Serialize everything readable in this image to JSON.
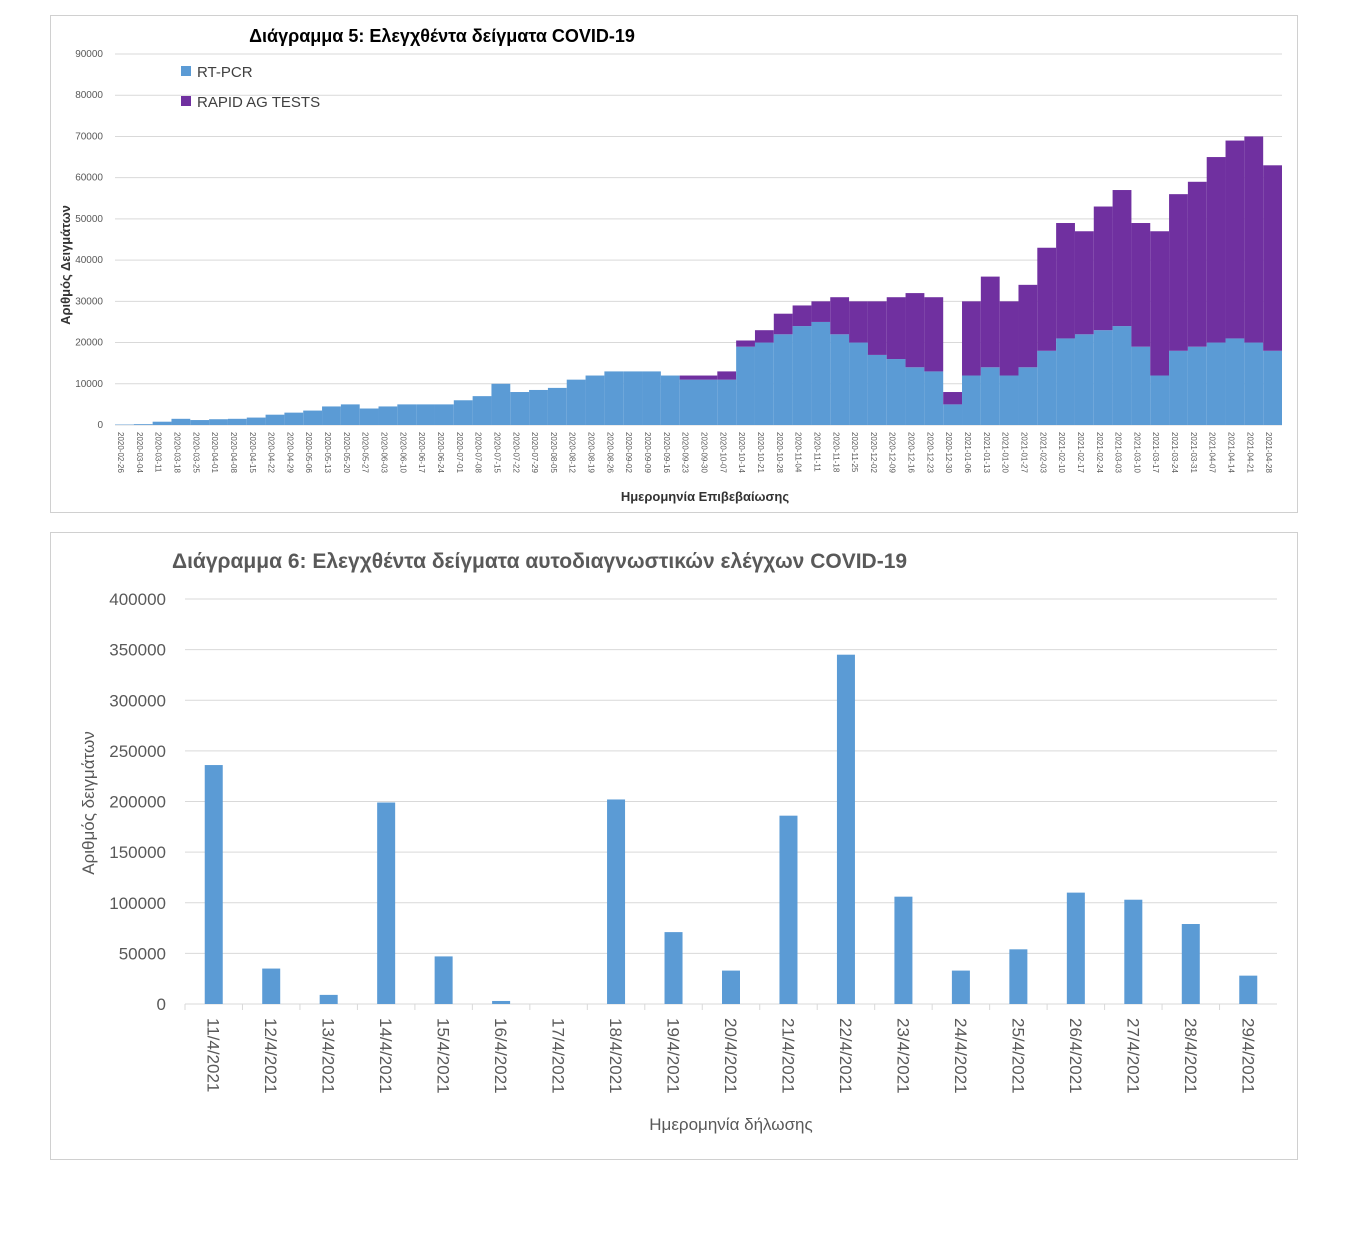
{
  "chart_data": [
    {
      "type": "bar",
      "stacked": true,
      "title": "Διάγραμμα 5: Ελεγχθέντα δείγματα COVID-19",
      "xlabel": "Ημερομηνία Επιβεβαίωσης",
      "ylabel": "Αριθμός Δειγμάτων",
      "ylim": [
        0,
        90000
      ],
      "yticks": [
        0,
        10000,
        20000,
        30000,
        40000,
        50000,
        60000,
        70000,
        80000,
        90000
      ],
      "legend": "top-left",
      "grid": true,
      "categories": [
        "2020-02-26",
        "2020-03-04",
        "2020-03-11",
        "2020-03-18",
        "2020-03-25",
        "2020-04-01",
        "2020-04-08",
        "2020-04-15",
        "2020-04-22",
        "2020-04-29",
        "2020-05-06",
        "2020-05-13",
        "2020-05-20",
        "2020-05-27",
        "2020-06-03",
        "2020-06-10",
        "2020-06-17",
        "2020-06-24",
        "2020-07-01",
        "2020-07-08",
        "2020-07-15",
        "2020-07-22",
        "2020-07-29",
        "2020-08-05",
        "2020-08-12",
        "2020-08-19",
        "2020-08-26",
        "2020-09-02",
        "2020-09-09",
        "2020-09-16",
        "2020-09-23",
        "2020-09-30",
        "2020-10-07",
        "2020-10-14",
        "2020-10-21",
        "2020-10-28",
        "2020-11-04",
        "2020-11-11",
        "2020-11-18",
        "2020-11-25",
        "2020-12-02",
        "2020-12-09",
        "2020-12-16",
        "2020-12-23",
        "2020-12-30",
        "2021-01-06",
        "2021-01-13",
        "2021-01-20",
        "2021-01-27",
        "2021-02-03",
        "2021-02-10",
        "2021-02-17",
        "2021-02-24",
        "2021-03-03",
        "2021-03-10",
        "2021-03-17",
        "2021-03-24",
        "2021-03-31",
        "2021-04-07",
        "2021-04-14",
        "2021-04-21",
        "2021-04-28"
      ],
      "series": [
        {
          "name": "RT-PCR",
          "color": "#5b9bd5",
          "values": [
            100,
            200,
            800,
            1500,
            1200,
            1400,
            1500,
            1800,
            2500,
            3000,
            3500,
            4500,
            5000,
            4000,
            4500,
            5000,
            5000,
            5000,
            6000,
            7000,
            10000,
            8000,
            8500,
            9000,
            11000,
            12000,
            13000,
            13000,
            13000,
            12000,
            11000,
            11000,
            11000,
            19000,
            20000,
            22000,
            24000,
            25000,
            22000,
            20000,
            17000,
            16000,
            14000,
            13000,
            5000,
            12000,
            14000,
            12000,
            14000,
            18000,
            21000,
            22000,
            23000,
            24000,
            19000,
            12000,
            18000,
            19000,
            20000,
            21000,
            20000,
            18000
          ]
        },
        {
          "name": "RAPID AG TESTS",
          "color": "#7030a0",
          "values": [
            0,
            0,
            0,
            0,
            0,
            0,
            0,
            0,
            0,
            0,
            0,
            0,
            0,
            0,
            0,
            0,
            0,
            0,
            0,
            0,
            0,
            0,
            0,
            0,
            0,
            0,
            0,
            0,
            0,
            0,
            1000,
            1000,
            2000,
            1500,
            3000,
            5000,
            5000,
            5000,
            9000,
            10000,
            13000,
            15000,
            18000,
            18000,
            3000,
            18000,
            22000,
            18000,
            20000,
            25000,
            28000,
            25000,
            30000,
            33000,
            30000,
            35000,
            38000,
            40000,
            45000,
            48000,
            50000,
            45000
          ]
        }
      ]
    },
    {
      "type": "bar",
      "title": "Διάγραμμα 6: Ελεγχθέντα δείγματα αυτοδιαγνωστικών ελέγχων COVID-19",
      "xlabel": "Ημερομηνία δήλωσης",
      "ylabel": "Αριθμός δειγμάτων",
      "ylim": [
        0,
        400000
      ],
      "yticks": [
        0,
        50000,
        100000,
        150000,
        200000,
        250000,
        300000,
        350000,
        400000
      ],
      "grid": true,
      "color": "#5b9bd5",
      "categories": [
        "11/4/2021",
        "12/4/2021",
        "13/4/2021",
        "14/4/2021",
        "15/4/2021",
        "16/4/2021",
        "17/4/2021",
        "18/4/2021",
        "19/4/2021",
        "20/4/2021",
        "21/4/2021",
        "22/4/2021",
        "23/4/2021",
        "24/4/2021",
        "25/4/2021",
        "26/4/2021",
        "27/4/2021",
        "28/4/2021",
        "29/4/2021"
      ],
      "values": [
        236000,
        35000,
        9000,
        199000,
        47000,
        3000,
        0,
        202000,
        71000,
        33000,
        186000,
        345000,
        106000,
        33000,
        54000,
        110000,
        103000,
        79000,
        28000
      ]
    }
  ]
}
